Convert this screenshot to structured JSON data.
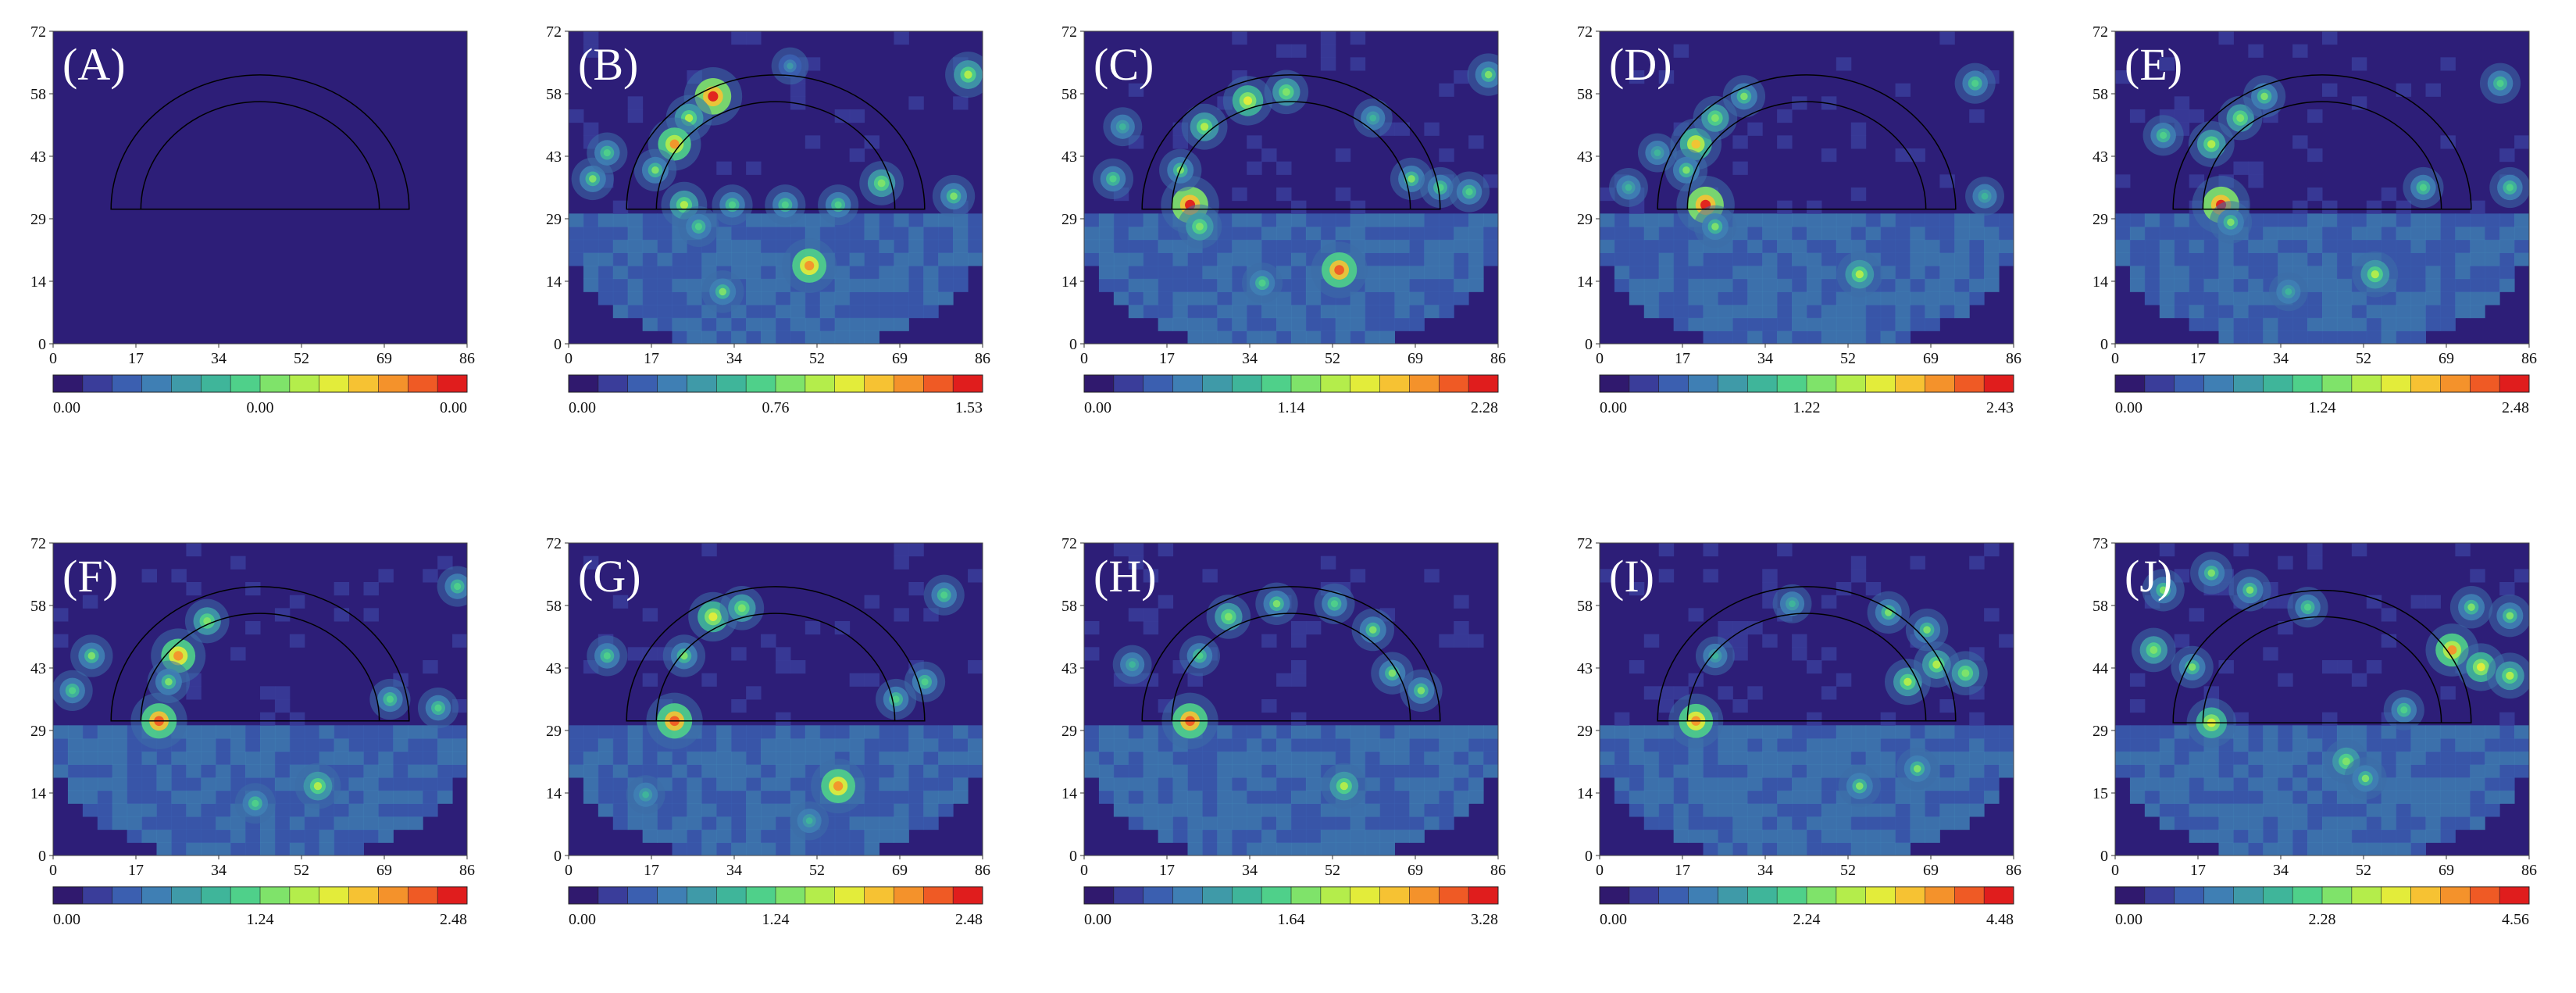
{
  "figure": {
    "colors": {
      "background": "#2d1e78",
      "colormap": [
        "#30196e",
        "#3a3d9a",
        "#3b5fb0",
        "#3f7fb4",
        "#3f9aa8",
        "#3fb59a",
        "#4fd08a",
        "#7fe36a",
        "#b4ed4b",
        "#e3ec3a",
        "#f6c233",
        "#f4922b",
        "#ef5a25",
        "#e01d1d"
      ],
      "halo": "#3d6da8"
    }
  },
  "chart_data": [
    {
      "type": "heatmap",
      "panel_label": "(A)",
      "x_ticks": [
        "0",
        "17",
        "34",
        "52",
        "69",
        "86"
      ],
      "y_ticks": [
        "0",
        "14",
        "29",
        "43",
        "58",
        "72"
      ],
      "xlim": [
        0,
        86
      ],
      "ylim": [
        0,
        72
      ],
      "colorbar": {
        "min": "0.00",
        "mid": "0.00",
        "max": "0.00"
      },
      "intensity": 0.0,
      "hotspots": []
    },
    {
      "type": "heatmap",
      "panel_label": "(B)",
      "x_ticks": [
        "0",
        "17",
        "34",
        "52",
        "69",
        "86"
      ],
      "y_ticks": [
        "0",
        "14",
        "29",
        "43",
        "58",
        "72"
      ],
      "xlim": [
        0,
        86
      ],
      "ylim": [
        0,
        72
      ],
      "colorbar": {
        "min": "0.00",
        "mid": "0.76",
        "max": "1.53"
      },
      "intensity": 0.55,
      "hotspots": [
        {
          "x": 30,
          "y": 57,
          "v": 0.95
        },
        {
          "x": 25,
          "y": 52,
          "v": 0.6
        },
        {
          "x": 22,
          "y": 46,
          "v": 0.8
        },
        {
          "x": 18,
          "y": 40,
          "v": 0.5
        },
        {
          "x": 5,
          "y": 38,
          "v": 0.5
        },
        {
          "x": 8,
          "y": 44,
          "v": 0.45
        },
        {
          "x": 24,
          "y": 32,
          "v": 0.6
        },
        {
          "x": 34,
          "y": 32,
          "v": 0.45
        },
        {
          "x": 45,
          "y": 32,
          "v": 0.45
        },
        {
          "x": 56,
          "y": 32,
          "v": 0.45
        },
        {
          "x": 65,
          "y": 37,
          "v": 0.55
        },
        {
          "x": 80,
          "y": 34,
          "v": 0.5
        },
        {
          "x": 83,
          "y": 62,
          "v": 0.6
        },
        {
          "x": 50,
          "y": 18,
          "v": 0.85
        },
        {
          "x": 32,
          "y": 12,
          "v": 0.5
        },
        {
          "x": 27,
          "y": 27,
          "v": 0.45
        },
        {
          "x": 46,
          "y": 64,
          "v": 0.35
        }
      ]
    },
    {
      "type": "heatmap",
      "panel_label": "(C)",
      "x_ticks": [
        "0",
        "17",
        "34",
        "52",
        "69",
        "86"
      ],
      "y_ticks": [
        "0",
        "14",
        "29",
        "43",
        "58",
        "72"
      ],
      "xlim": [
        0,
        86
      ],
      "ylim": [
        0,
        72
      ],
      "colorbar": {
        "min": "0.00",
        "mid": "1.14",
        "max": "2.28"
      },
      "intensity": 0.65,
      "hotspots": [
        {
          "x": 22,
          "y": 32,
          "v": 0.95
        },
        {
          "x": 34,
          "y": 56,
          "v": 0.7
        },
        {
          "x": 42,
          "y": 58,
          "v": 0.55
        },
        {
          "x": 25,
          "y": 50,
          "v": 0.6
        },
        {
          "x": 20,
          "y": 40,
          "v": 0.5
        },
        {
          "x": 53,
          "y": 17,
          "v": 0.9
        },
        {
          "x": 37,
          "y": 14,
          "v": 0.45
        },
        {
          "x": 68,
          "y": 38,
          "v": 0.5
        },
        {
          "x": 74,
          "y": 36,
          "v": 0.45
        },
        {
          "x": 80,
          "y": 35,
          "v": 0.45
        },
        {
          "x": 84,
          "y": 62,
          "v": 0.5
        },
        {
          "x": 6,
          "y": 38,
          "v": 0.45
        },
        {
          "x": 24,
          "y": 27,
          "v": 0.55
        },
        {
          "x": 60,
          "y": 52,
          "v": 0.4
        },
        {
          "x": 8,
          "y": 50,
          "v": 0.4
        }
      ]
    },
    {
      "type": "heatmap",
      "panel_label": "(D)",
      "x_ticks": [
        "0",
        "17",
        "34",
        "52",
        "69",
        "86"
      ],
      "y_ticks": [
        "0",
        "14",
        "29",
        "43",
        "58",
        "72"
      ],
      "xlim": [
        0,
        86
      ],
      "ylim": [
        0,
        72
      ],
      "colorbar": {
        "min": "0.00",
        "mid": "1.22",
        "max": "2.43"
      },
      "intensity": 0.6,
      "hotspots": [
        {
          "x": 22,
          "y": 32,
          "v": 0.95
        },
        {
          "x": 20,
          "y": 46,
          "v": 0.75
        },
        {
          "x": 24,
          "y": 52,
          "v": 0.55
        },
        {
          "x": 30,
          "y": 57,
          "v": 0.5
        },
        {
          "x": 18,
          "y": 40,
          "v": 0.5
        },
        {
          "x": 54,
          "y": 16,
          "v": 0.6
        },
        {
          "x": 6,
          "y": 36,
          "v": 0.4
        },
        {
          "x": 24,
          "y": 27,
          "v": 0.5
        },
        {
          "x": 80,
          "y": 34,
          "v": 0.4
        },
        {
          "x": 78,
          "y": 60,
          "v": 0.45
        },
        {
          "x": 12,
          "y": 44,
          "v": 0.4
        }
      ]
    },
    {
      "type": "heatmap",
      "panel_label": "(E)",
      "x_ticks": [
        "0",
        "17",
        "34",
        "52",
        "69",
        "86"
      ],
      "y_ticks": [
        "0",
        "14",
        "29",
        "43",
        "58",
        "72"
      ],
      "xlim": [
        0,
        86
      ],
      "ylim": [
        0,
        72
      ],
      "colorbar": {
        "min": "0.00",
        "mid": "1.24",
        "max": "2.48"
      },
      "intensity": 0.6,
      "hotspots": [
        {
          "x": 22,
          "y": 32,
          "v": 0.95
        },
        {
          "x": 20,
          "y": 46,
          "v": 0.6
        },
        {
          "x": 26,
          "y": 52,
          "v": 0.55
        },
        {
          "x": 31,
          "y": 57,
          "v": 0.5
        },
        {
          "x": 54,
          "y": 16,
          "v": 0.6
        },
        {
          "x": 24,
          "y": 28,
          "v": 0.5
        },
        {
          "x": 64,
          "y": 36,
          "v": 0.45
        },
        {
          "x": 82,
          "y": 36,
          "v": 0.45
        },
        {
          "x": 80,
          "y": 60,
          "v": 0.45
        },
        {
          "x": 10,
          "y": 48,
          "v": 0.45
        },
        {
          "x": 36,
          "y": 12,
          "v": 0.4
        }
      ]
    },
    {
      "type": "heatmap",
      "panel_label": "(F)",
      "x_ticks": [
        "0",
        "17",
        "34",
        "52",
        "69",
        "86"
      ],
      "y_ticks": [
        "0",
        "14",
        "29",
        "43",
        "58",
        "72"
      ],
      "xlim": [
        0,
        86
      ],
      "ylim": [
        0,
        72
      ],
      "colorbar": {
        "min": "0.00",
        "mid": "1.24",
        "max": "2.48"
      },
      "intensity": 0.6,
      "hotspots": [
        {
          "x": 22,
          "y": 31,
          "v": 0.9
        },
        {
          "x": 26,
          "y": 46,
          "v": 0.85
        },
        {
          "x": 32,
          "y": 54,
          "v": 0.55
        },
        {
          "x": 24,
          "y": 40,
          "v": 0.5
        },
        {
          "x": 55,
          "y": 16,
          "v": 0.6
        },
        {
          "x": 42,
          "y": 12,
          "v": 0.45
        },
        {
          "x": 70,
          "y": 36,
          "v": 0.45
        },
        {
          "x": 80,
          "y": 34,
          "v": 0.45
        },
        {
          "x": 84,
          "y": 62,
          "v": 0.45
        },
        {
          "x": 8,
          "y": 46,
          "v": 0.5
        },
        {
          "x": 4,
          "y": 38,
          "v": 0.45
        }
      ]
    },
    {
      "type": "heatmap",
      "panel_label": "(G)",
      "x_ticks": [
        "0",
        "17",
        "34",
        "52",
        "69",
        "86"
      ],
      "y_ticks": [
        "0",
        "14",
        "29",
        "43",
        "58",
        "72"
      ],
      "xlim": [
        0,
        86
      ],
      "ylim": [
        0,
        72
      ],
      "colorbar": {
        "min": "0.00",
        "mid": "1.24",
        "max": "2.48"
      },
      "intensity": 0.6,
      "hotspots": [
        {
          "x": 22,
          "y": 31,
          "v": 0.9
        },
        {
          "x": 30,
          "y": 55,
          "v": 0.7
        },
        {
          "x": 36,
          "y": 57,
          "v": 0.55
        },
        {
          "x": 24,
          "y": 46,
          "v": 0.5
        },
        {
          "x": 56,
          "y": 16,
          "v": 0.85
        },
        {
          "x": 68,
          "y": 36,
          "v": 0.45
        },
        {
          "x": 74,
          "y": 40,
          "v": 0.45
        },
        {
          "x": 78,
          "y": 60,
          "v": 0.45
        },
        {
          "x": 8,
          "y": 46,
          "v": 0.45
        },
        {
          "x": 16,
          "y": 14,
          "v": 0.4
        },
        {
          "x": 50,
          "y": 8,
          "v": 0.4
        }
      ]
    },
    {
      "type": "heatmap",
      "panel_label": "(H)",
      "x_ticks": [
        "0",
        "17",
        "34",
        "52",
        "69",
        "86"
      ],
      "y_ticks": [
        "0",
        "14",
        "29",
        "43",
        "58",
        "72"
      ],
      "xlim": [
        0,
        86
      ],
      "ylim": [
        0,
        72
      ],
      "colorbar": {
        "min": "0.00",
        "mid": "1.64",
        "max": "3.28"
      },
      "intensity": 0.65,
      "hotspots": [
        {
          "x": 22,
          "y": 31,
          "v": 0.9
        },
        {
          "x": 30,
          "y": 55,
          "v": 0.55
        },
        {
          "x": 40,
          "y": 58,
          "v": 0.5
        },
        {
          "x": 52,
          "y": 58,
          "v": 0.45
        },
        {
          "x": 60,
          "y": 52,
          "v": 0.5
        },
        {
          "x": 64,
          "y": 42,
          "v": 0.5
        },
        {
          "x": 70,
          "y": 38,
          "v": 0.5
        },
        {
          "x": 54,
          "y": 16,
          "v": 0.6
        },
        {
          "x": 24,
          "y": 46,
          "v": 0.45
        },
        {
          "x": 10,
          "y": 44,
          "v": 0.4
        }
      ]
    },
    {
      "type": "heatmap",
      "panel_label": "(I)",
      "x_ticks": [
        "0",
        "17",
        "34",
        "52",
        "69",
        "86"
      ],
      "y_ticks": [
        "0",
        "14",
        "29",
        "43",
        "58",
        "72"
      ],
      "xlim": [
        0,
        86
      ],
      "ylim": [
        0,
        72
      ],
      "colorbar": {
        "min": "0.00",
        "mid": "2.24",
        "max": "4.48"
      },
      "intensity": 0.7,
      "hotspots": [
        {
          "x": 20,
          "y": 31,
          "v": 0.85
        },
        {
          "x": 64,
          "y": 40,
          "v": 0.6
        },
        {
          "x": 70,
          "y": 44,
          "v": 0.6
        },
        {
          "x": 76,
          "y": 42,
          "v": 0.55
        },
        {
          "x": 68,
          "y": 52,
          "v": 0.5
        },
        {
          "x": 60,
          "y": 56,
          "v": 0.5
        },
        {
          "x": 66,
          "y": 20,
          "v": 0.5
        },
        {
          "x": 54,
          "y": 16,
          "v": 0.5
        },
        {
          "x": 24,
          "y": 46,
          "v": 0.4
        },
        {
          "x": 40,
          "y": 58,
          "v": 0.4
        }
      ]
    },
    {
      "type": "heatmap",
      "panel_label": "(J)",
      "x_ticks": [
        "0",
        "17",
        "34",
        "52",
        "69",
        "86"
      ],
      "y_ticks": [
        "0",
        "15",
        "29",
        "44",
        "58",
        "73"
      ],
      "xlim": [
        0,
        86
      ],
      "ylim": [
        0,
        73
      ],
      "colorbar": {
        "min": "0.00",
        "mid": "2.28",
        "max": "4.56"
      },
      "intensity": 0.85,
      "hotspots": [
        {
          "x": 20,
          "y": 31,
          "v": 0.7
        },
        {
          "x": 10,
          "y": 62,
          "v": 0.5
        },
        {
          "x": 20,
          "y": 66,
          "v": 0.5
        },
        {
          "x": 28,
          "y": 62,
          "v": 0.5
        },
        {
          "x": 8,
          "y": 48,
          "v": 0.55
        },
        {
          "x": 16,
          "y": 44,
          "v": 0.5
        },
        {
          "x": 70,
          "y": 48,
          "v": 0.8
        },
        {
          "x": 76,
          "y": 44,
          "v": 0.65
        },
        {
          "x": 82,
          "y": 42,
          "v": 0.6
        },
        {
          "x": 74,
          "y": 58,
          "v": 0.5
        },
        {
          "x": 82,
          "y": 56,
          "v": 0.5
        },
        {
          "x": 48,
          "y": 22,
          "v": 0.55
        },
        {
          "x": 52,
          "y": 18,
          "v": 0.5
        },
        {
          "x": 60,
          "y": 34,
          "v": 0.45
        },
        {
          "x": 40,
          "y": 58,
          "v": 0.45
        }
      ]
    }
  ]
}
